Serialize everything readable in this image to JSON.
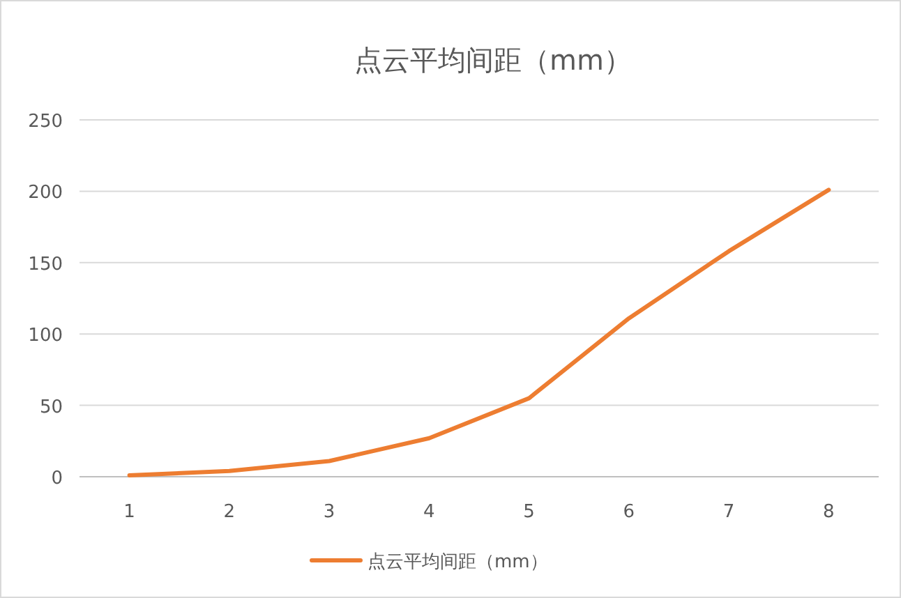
{
  "chart_data": {
    "type": "line",
    "title": "点云平均间距（mm）",
    "categories": [
      "1",
      "2",
      "3",
      "4",
      "5",
      "6",
      "7",
      "8"
    ],
    "series": [
      {
        "name": "点云平均间距（mm）",
        "color": "#ed7d31",
        "values": [
          1,
          4,
          11,
          27,
          55,
          111,
          158,
          201
        ]
      }
    ],
    "ylim": [
      0,
      250
    ],
    "yticks": [
      0,
      50,
      100,
      150,
      200,
      250
    ],
    "grid": "y",
    "legend": "bottom"
  }
}
